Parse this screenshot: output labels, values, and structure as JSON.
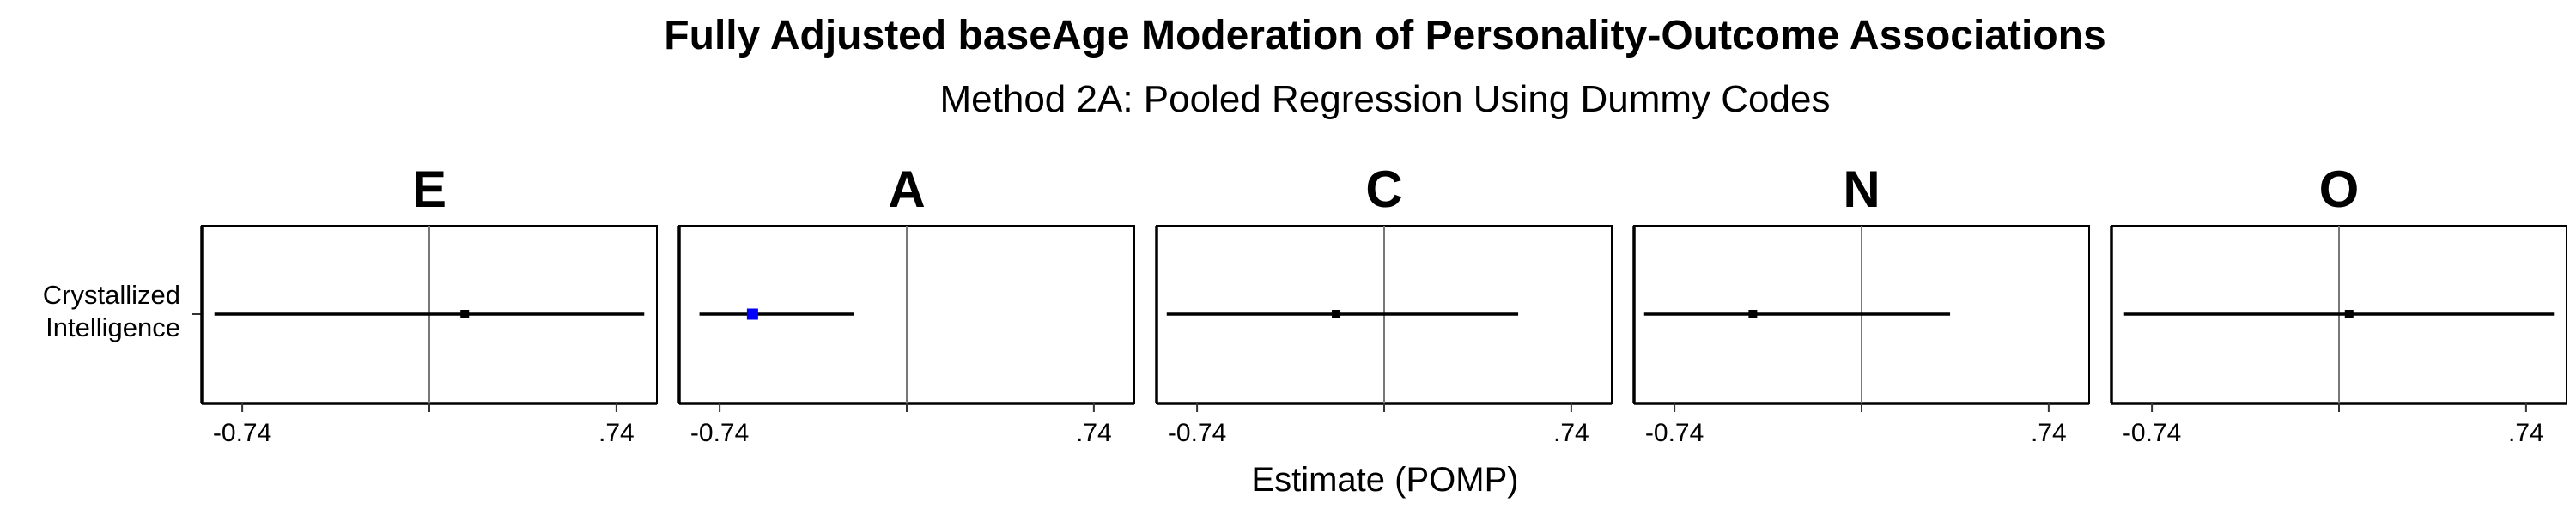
{
  "chart_data": {
    "type": "forest",
    "title": "Fully Adjusted baseAge Moderation of Personality-Outcome Associations",
    "subtitle": "Method 2A: Pooled Regression Using Dummy Codes",
    "xlabel": "Estimate (POMP)",
    "xlim": [
      -0.9,
      0.9
    ],
    "x_ticks": [
      -0.74,
      0,
      0.74
    ],
    "x_tick_labels": [
      "-0.74",
      "",
      ".74"
    ],
    "category": "Crystallized\nIntelligence",
    "grid": false,
    "reference_line": 0,
    "panels": [
      {
        "facet": "E",
        "estimate": 0.14,
        "ci_low": -0.85,
        "ci_high": 0.85,
        "color": "#000000"
      },
      {
        "facet": "A",
        "estimate": -0.61,
        "ci_low": -0.82,
        "ci_high": -0.21,
        "color": "#0000ff"
      },
      {
        "facet": "C",
        "estimate": -0.19,
        "ci_low": -0.86,
        "ci_high": 0.53,
        "color": "#000000"
      },
      {
        "facet": "N",
        "estimate": -0.43,
        "ci_low": -0.86,
        "ci_high": 0.35,
        "color": "#000000"
      },
      {
        "facet": "O",
        "estimate": 0.04,
        "ci_low": -0.85,
        "ci_high": 0.85,
        "color": "#000000"
      }
    ]
  }
}
